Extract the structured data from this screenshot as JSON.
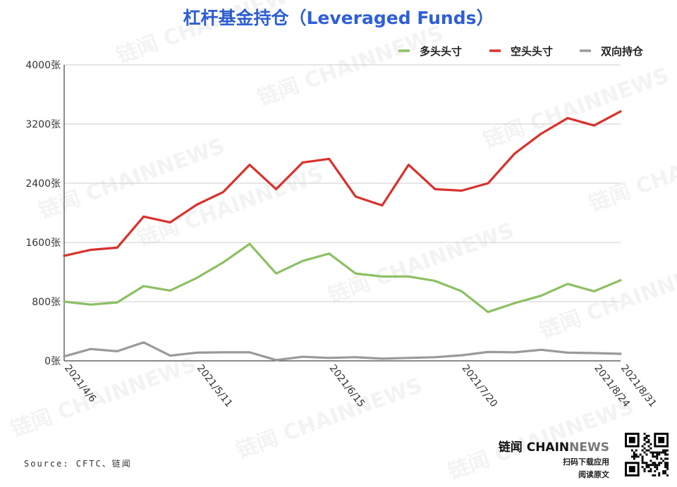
{
  "chart_data": {
    "type": "line",
    "title": "杠杆基金持仓（Leveraged Funds）",
    "xlabel": "",
    "ylabel": "",
    "ylim": [
      0,
      4000
    ],
    "y_ticks": [
      "0张",
      "800张",
      "1600张",
      "2400张",
      "3200张",
      "4000张"
    ],
    "x_tick_labels": [
      "2021/4/6",
      "2021/5/11",
      "2021/6/15",
      "2021/7/20",
      "2021/8/24",
      "2021/8/31"
    ],
    "x_tick_index": [
      0,
      5,
      10,
      15,
      20,
      21
    ],
    "grid": "horizontal",
    "legend_position": "top-right",
    "series": [
      {
        "name": "多头头寸",
        "color": "#8cc063",
        "values": [
          800,
          760,
          790,
          1010,
          950,
          1120,
          1330,
          1580,
          1180,
          1350,
          1450,
          1180,
          1140,
          1140,
          1080,
          940,
          660,
          780,
          880,
          1040,
          940,
          1090
        ]
      },
      {
        "name": "空头头寸",
        "color": "#d9312b",
        "values": [
          1420,
          1500,
          1530,
          1950,
          1870,
          2110,
          2280,
          2650,
          2320,
          2680,
          2730,
          2220,
          2100,
          2650,
          2320,
          2300,
          2400,
          2800,
          3070,
          3280,
          3180,
          3370
        ]
      },
      {
        "name": "双向持仓",
        "color": "#9a9a9a",
        "values": [
          60,
          160,
          130,
          250,
          70,
          110,
          115,
          115,
          10,
          55,
          40,
          50,
          30,
          40,
          50,
          75,
          120,
          115,
          150,
          110,
          105,
          95
        ]
      }
    ]
  },
  "source_text": "Source: CFTC、链闻",
  "brand": {
    "name_part1": "链闻 CHAIN",
    "name_part2": "NEWS",
    "line1": "扫码下载应用",
    "line2": "阅读原文",
    "watermark_text": "链闻 CHAINNEWS"
  }
}
